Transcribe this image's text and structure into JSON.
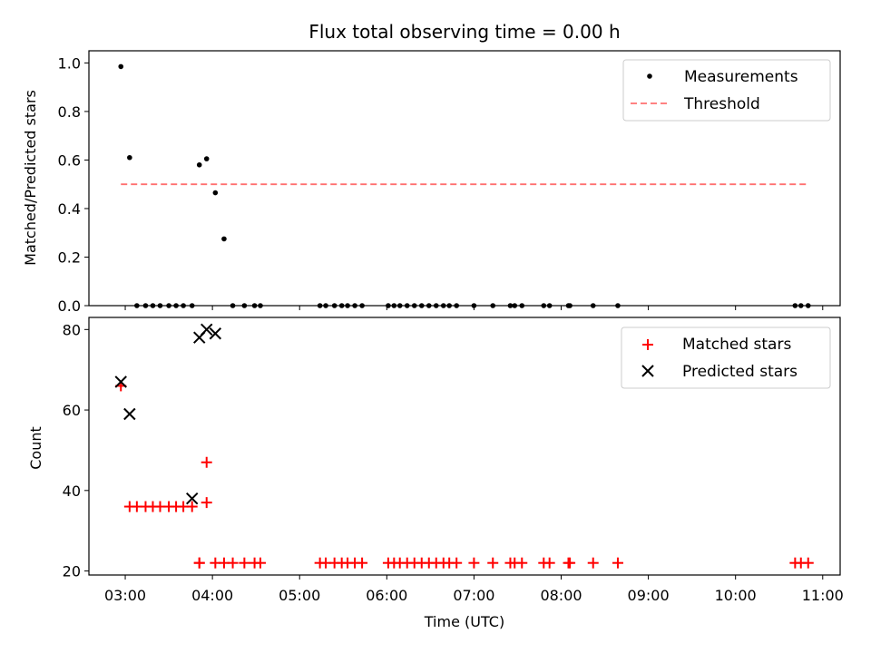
{
  "chart_data": {
    "title": "Flux total observing time = 0.00 h",
    "xlabel": "Time (UTC)",
    "xticks": [
      "03:00",
      "04:00",
      "05:00",
      "06:00",
      "07:00",
      "08:00",
      "09:00",
      "10:00",
      "11:00"
    ],
    "xlim": [
      "02:35",
      "11:12"
    ],
    "panels": [
      {
        "type": "scatter",
        "ylabel": "Matched/Predicted stars",
        "ylim": [
          0,
          1.05
        ],
        "yticks": [
          "0.0",
          "0.2",
          "0.4",
          "0.6",
          "0.8",
          "1.0"
        ],
        "legend_position": "top-right",
        "series": [
          {
            "name": "Measurements",
            "marker": "dot",
            "color": "#000000",
            "x": [
              "02:57",
              "03:03",
              "03:08",
              "03:14",
              "03:19",
              "03:24",
              "03:30",
              "03:35",
              "03:40",
              "03:46",
              "03:51",
              "03:56",
              "04:02",
              "04:08",
              "04:14",
              "04:22",
              "04:29",
              "04:33",
              "05:14",
              "05:18",
              "05:24",
              "05:29",
              "05:33",
              "05:38",
              "05:43",
              "06:01",
              "06:05",
              "06:09",
              "06:14",
              "06:19",
              "06:24",
              "06:29",
              "06:34",
              "06:39",
              "06:43",
              "06:48",
              "07:00",
              "07:13",
              "07:25",
              "07:28",
              "07:33",
              "07:48",
              "07:52",
              "08:05",
              "08:06",
              "08:22",
              "08:39",
              "10:41",
              "10:45",
              "10:50"
            ],
            "y": [
              0.985,
              0.61,
              0,
              0,
              0,
              0,
              0,
              0,
              0,
              0,
              0.58,
              0.605,
              0.465,
              0.275,
              0,
              0,
              0,
              0,
              0,
              0,
              0,
              0,
              0,
              0,
              0,
              0,
              0,
              0,
              0,
              0,
              0,
              0,
              0,
              0,
              0,
              0,
              0,
              0,
              0,
              0,
              0,
              0,
              0,
              0,
              0,
              0,
              0,
              0,
              0,
              0
            ]
          },
          {
            "name": "Threshold",
            "style": "dashed",
            "color": "#ff7070",
            "x": [
              "02:57",
              "10:50"
            ],
            "y": [
              0.5,
              0.5
            ]
          }
        ]
      },
      {
        "type": "scatter",
        "ylabel": "Count",
        "ylim": [
          19,
          83
        ],
        "yticks": [
          "20",
          "40",
          "60",
          "80"
        ],
        "legend_position": "top-right",
        "series": [
          {
            "name": "Matched stars",
            "marker": "plus",
            "color": "#ff0000",
            "x": [
              "02:57",
              "03:03",
              "03:08",
              "03:14",
              "03:19",
              "03:24",
              "03:30",
              "03:35",
              "03:40",
              "03:46",
              "03:51",
              "03:56",
              "03:51",
              "03:56",
              "04:02",
              "04:08",
              "04:14",
              "04:22",
              "04:29",
              "04:33",
              "05:14",
              "05:18",
              "05:24",
              "05:29",
              "05:33",
              "05:38",
              "05:43",
              "06:01",
              "06:05",
              "06:09",
              "06:14",
              "06:19",
              "06:24",
              "06:29",
              "06:34",
              "06:39",
              "06:43",
              "06:48",
              "07:00",
              "07:13",
              "07:25",
              "07:28",
              "07:33",
              "07:48",
              "07:52",
              "08:05",
              "08:06",
              "08:22",
              "08:39",
              "10:41",
              "10:45",
              "10:50"
            ],
            "y": [
              66,
              36,
              36,
              36,
              36,
              36,
              36,
              36,
              36,
              36,
              22,
              47,
              22,
              37,
              22,
              22,
              22,
              22,
              22,
              22,
              22,
              22,
              22,
              22,
              22,
              22,
              22,
              22,
              22,
              22,
              22,
              22,
              22,
              22,
              22,
              22,
              22,
              22,
              22,
              22,
              22,
              22,
              22,
              22,
              22,
              22,
              22,
              22,
              22,
              22,
              22,
              22
            ]
          },
          {
            "name": "Predicted stars",
            "marker": "x",
            "color": "#000000",
            "x": [
              "02:57",
              "03:03",
              "03:46",
              "03:51",
              "03:56",
              "04:02"
            ],
            "y": [
              67,
              59,
              38,
              78,
              80,
              79
            ]
          }
        ]
      }
    ]
  }
}
